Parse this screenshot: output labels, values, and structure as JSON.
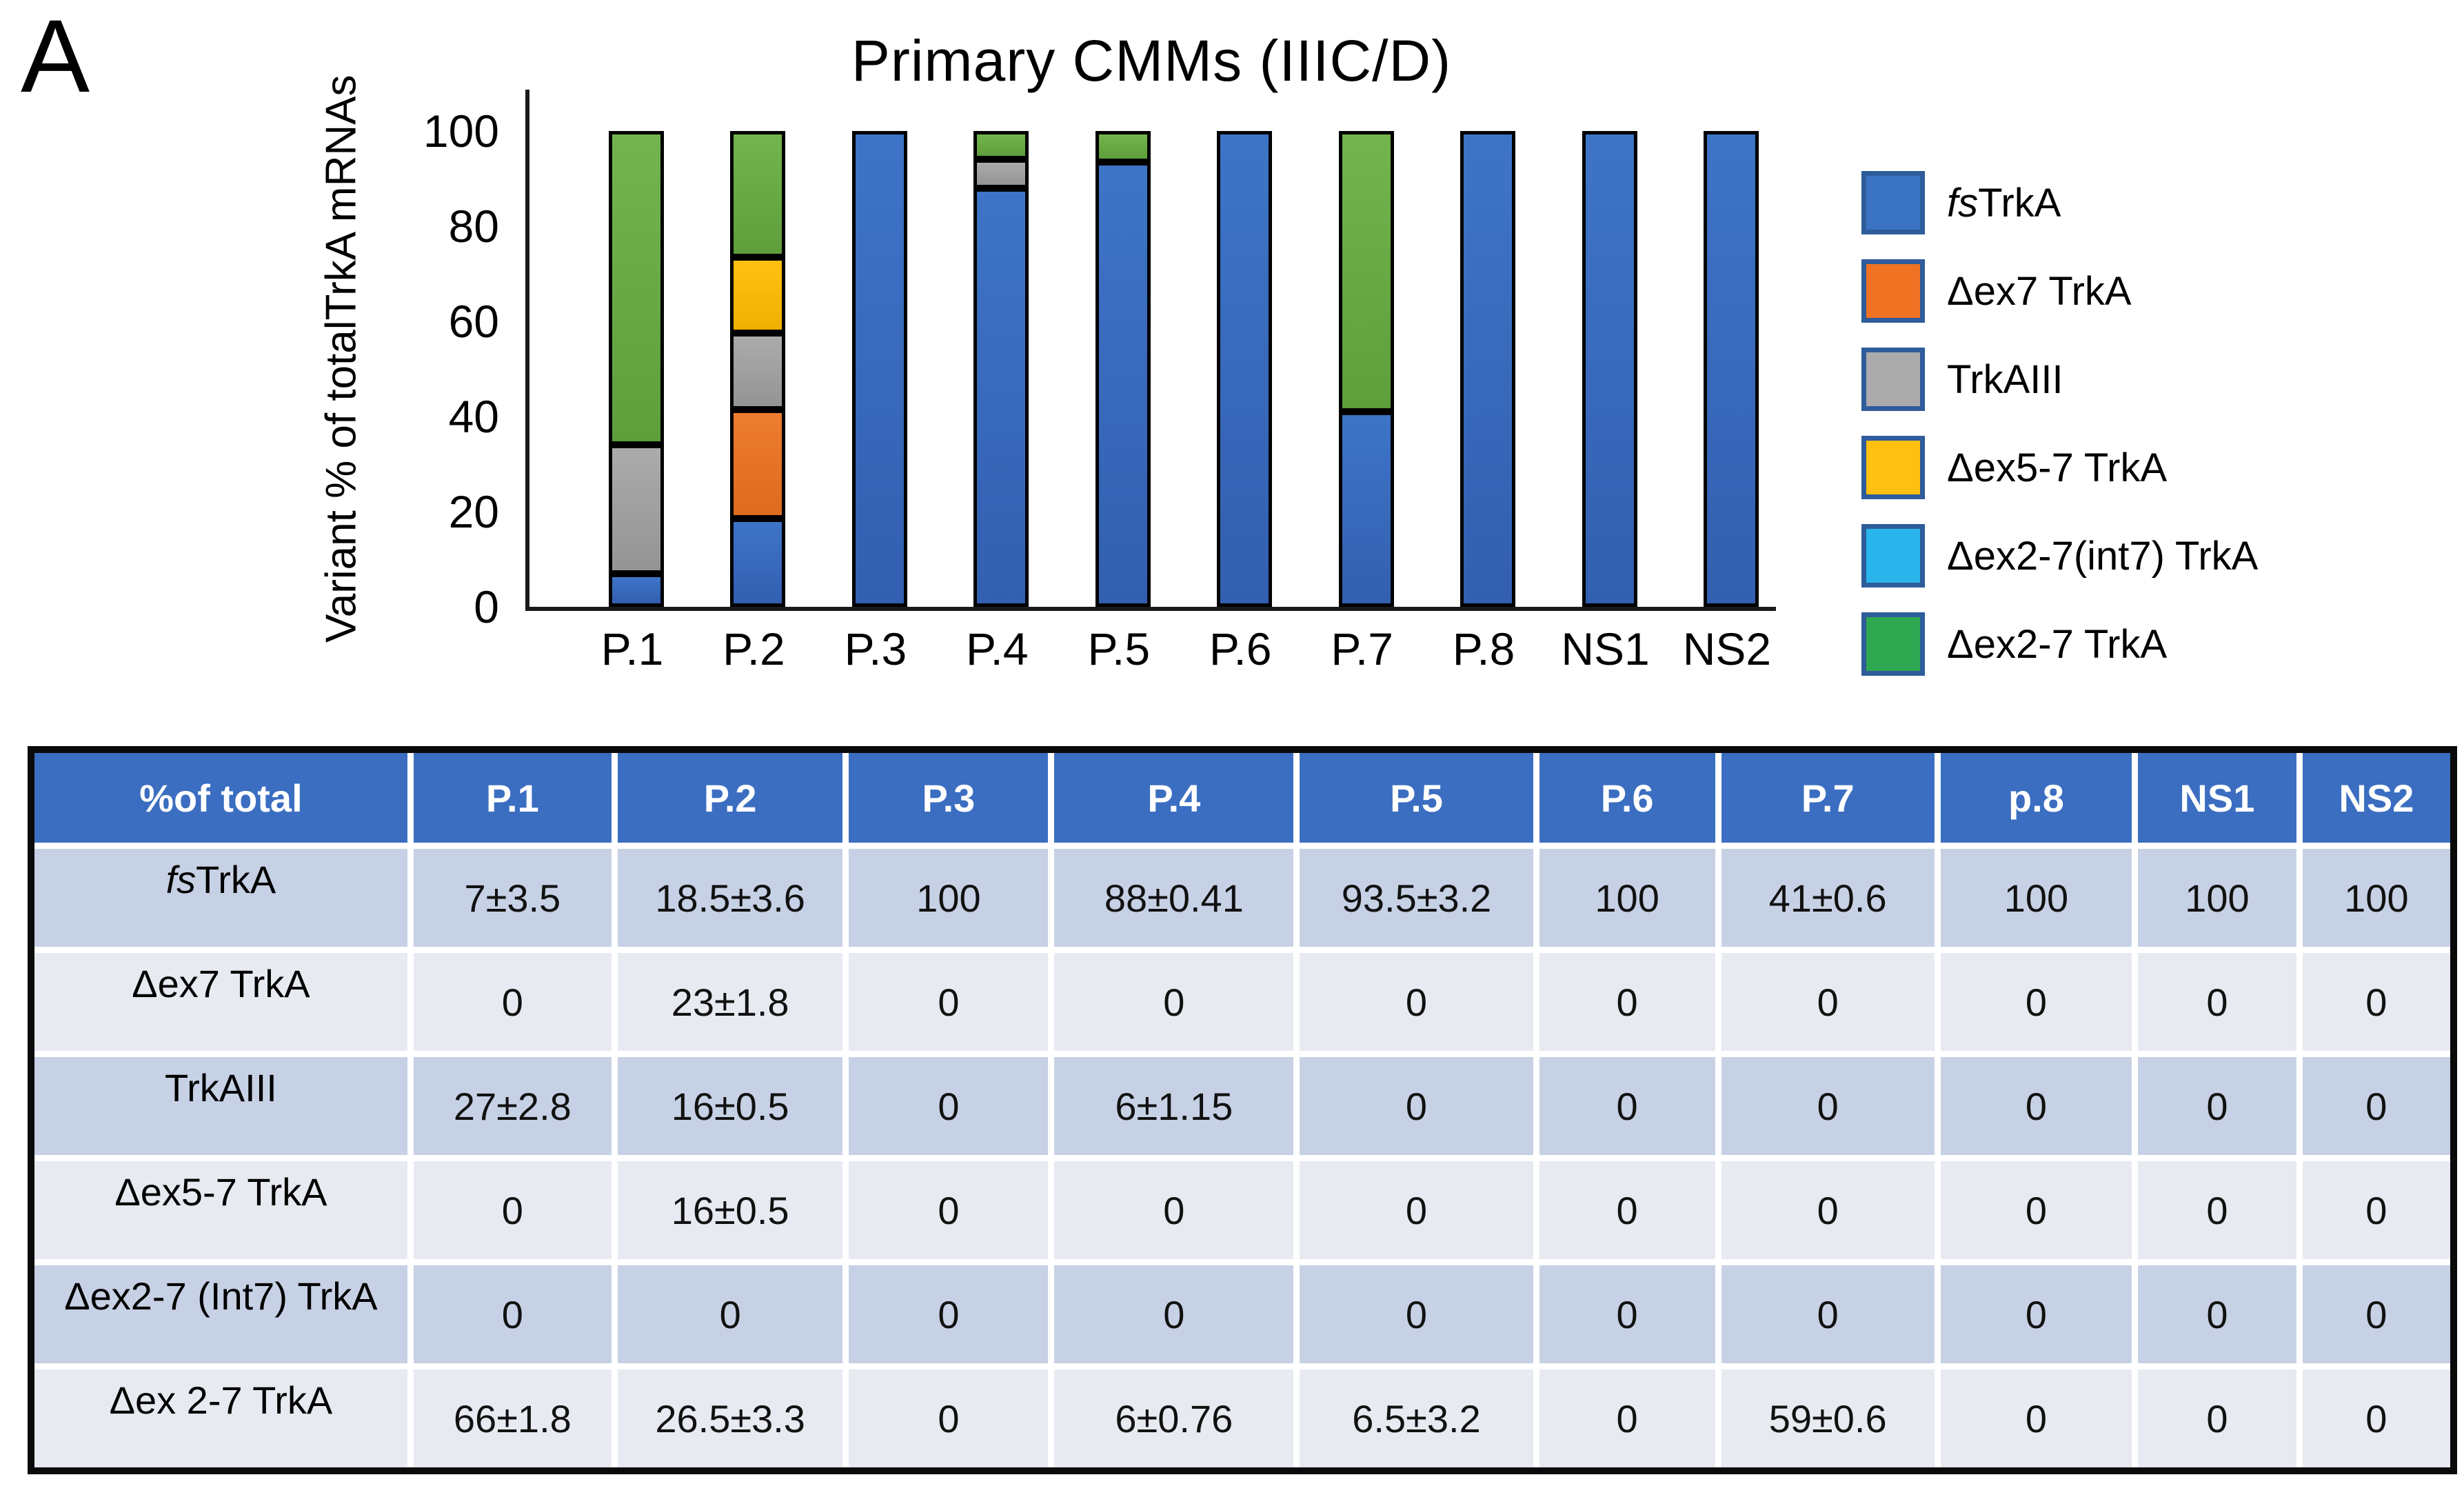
{
  "panel_label": "A",
  "chart_data": {
    "type": "bar",
    "stacked": true,
    "title": "Primary CMMs (IIIC/D)",
    "ylabel": "Variant % of totalTrkA mRNAs",
    "xlabel": "",
    "ylim": [
      0,
      100
    ],
    "yticks": [
      0,
      20,
      40,
      60,
      80,
      100
    ],
    "grid": false,
    "legend_position": "right",
    "categories": [
      "P.1",
      "P.2",
      "P.3",
      "P.4",
      "P.5",
      "P.6",
      "P.7",
      "P.8",
      "NS1",
      "NS2"
    ],
    "series": [
      {
        "name": "fsTrkA",
        "color": "#3E74C7",
        "shade": "#335FB0",
        "values": [
          7,
          18.5,
          100,
          88,
          93.5,
          100,
          41,
          100,
          100,
          100
        ]
      },
      {
        "name": "Δex7 TrkA",
        "color": "#ED7D31",
        "shade": "#DE6A1E",
        "values": [
          0,
          23,
          0,
          0,
          0,
          0,
          0,
          0,
          0,
          0
        ]
      },
      {
        "name": "TrkAIII",
        "color": "#ABABAB",
        "shade": "#949494",
        "values": [
          27,
          16,
          0,
          6,
          0,
          0,
          0,
          0,
          0,
          0
        ]
      },
      {
        "name": "Δex5-7 TrkA",
        "color": "#FFC011",
        "shade": "#F0B000",
        "values": [
          0,
          16,
          0,
          0,
          0,
          0,
          0,
          0,
          0,
          0
        ]
      },
      {
        "name": "Δex2-7(int7) TrkA",
        "color": "#29B5EC",
        "shade": "#29B5EC",
        "values": [
          0,
          0,
          0,
          0,
          0,
          0,
          0,
          0,
          0,
          0
        ]
      },
      {
        "name": "Δex2-7 TrkA",
        "color": "#74B44E",
        "shade": "#5F9E3A",
        "values": [
          66,
          26.5,
          0,
          6,
          6.5,
          0,
          59,
          0,
          0,
          0
        ]
      }
    ]
  },
  "legend": {
    "swatch_border_color": "#2F5C9A",
    "items": [
      {
        "italic": "fs",
        "label": "TrkA",
        "color": "#3A72C4"
      },
      {
        "italic": "",
        "label": "Δex7 TrkA",
        "color": "#F07222"
      },
      {
        "italic": "",
        "label": "TrkAIII",
        "color": "#ABABAB"
      },
      {
        "italic": "",
        "label": "Δex5-7 TrkA",
        "color": "#FFC011"
      },
      {
        "italic": "",
        "label": "Δex2-7(int7) TrkA",
        "color": "#29B5EC"
      },
      {
        "italic": "",
        "label": "Δex2-7 TrkA",
        "color": "#2FA851"
      }
    ]
  },
  "table": {
    "header": [
      "%of total",
      "P.1",
      "P.2",
      "P.3",
      "P.4",
      "P.5",
      "P.6",
      "P.7",
      "p.8",
      "NS1",
      "NS2"
    ],
    "colors": {
      "header_bg": "#3B6EC1",
      "band_dark": "#C7D1E5",
      "band_light": "#E8EAF2"
    },
    "rows": [
      {
        "italic": "fs",
        "label": "TrkA",
        "values": [
          "7±3.5",
          "18.5±3.6",
          "100",
          "88±0.41",
          "93.5±3.2",
          "100",
          "41±0.6",
          "100",
          "100",
          "100"
        ]
      },
      {
        "italic": "",
        "label": "Δex7 TrkA",
        "values": [
          "0",
          "23±1.8",
          "0",
          "0",
          "0",
          "0",
          "0",
          "0",
          "0",
          "0"
        ]
      },
      {
        "italic": "",
        "label": "TrkAIII",
        "values": [
          "27±2.8",
          "16±0.5",
          "0",
          "6±1.15",
          "0",
          "0",
          "0",
          "0",
          "0",
          "0"
        ]
      },
      {
        "italic": "",
        "label": "Δex5-7 TrkA",
        "values": [
          "0",
          "16±0.5",
          "0",
          "0",
          "0",
          "0",
          "0",
          "0",
          "0",
          "0"
        ]
      },
      {
        "italic": "",
        "label": "Δex2-7 (Int7) TrkA",
        "values": [
          "0",
          "0",
          "0",
          "0",
          "0",
          "0",
          "0",
          "0",
          "0",
          "0"
        ]
      },
      {
        "italic": "",
        "label": "Δex 2-7 TrkA",
        "values": [
          "66±1.8",
          "26.5±3.3",
          "0",
          "6±0.76",
          "6.5±3.2",
          "0",
          "59±0.6",
          "0",
          "0",
          "0"
        ]
      }
    ]
  }
}
